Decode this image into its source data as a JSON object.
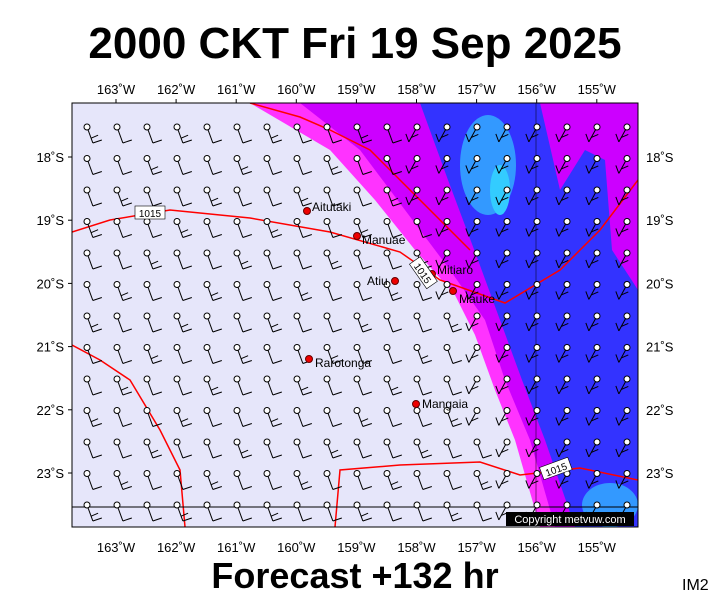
{
  "header": {
    "title": "2000 CKT Fri 19 Sep 2025"
  },
  "footer": {
    "forecast": "Forecast +132 hr",
    "code": "IM2"
  },
  "map": {
    "longitude_labels": [
      "163˚W",
      "162˚W",
      "161˚W",
      "160˚W",
      "159˚W",
      "158˚W",
      "157˚W",
      "156˚W",
      "155˚W"
    ],
    "latitude_labels": [
      "18˚S",
      "19˚S",
      "20˚S",
      "21˚S",
      "22˚S",
      "23˚S"
    ],
    "places": [
      "Aitutaki",
      "Manuae",
      "Mitiaro",
      "Atiu",
      "Mauke",
      "Rarotonga",
      "Mangaia"
    ],
    "isobar_labels": [
      "1015",
      "1015",
      "1015"
    ],
    "copyright": "Copyright metvuw.com"
  }
}
